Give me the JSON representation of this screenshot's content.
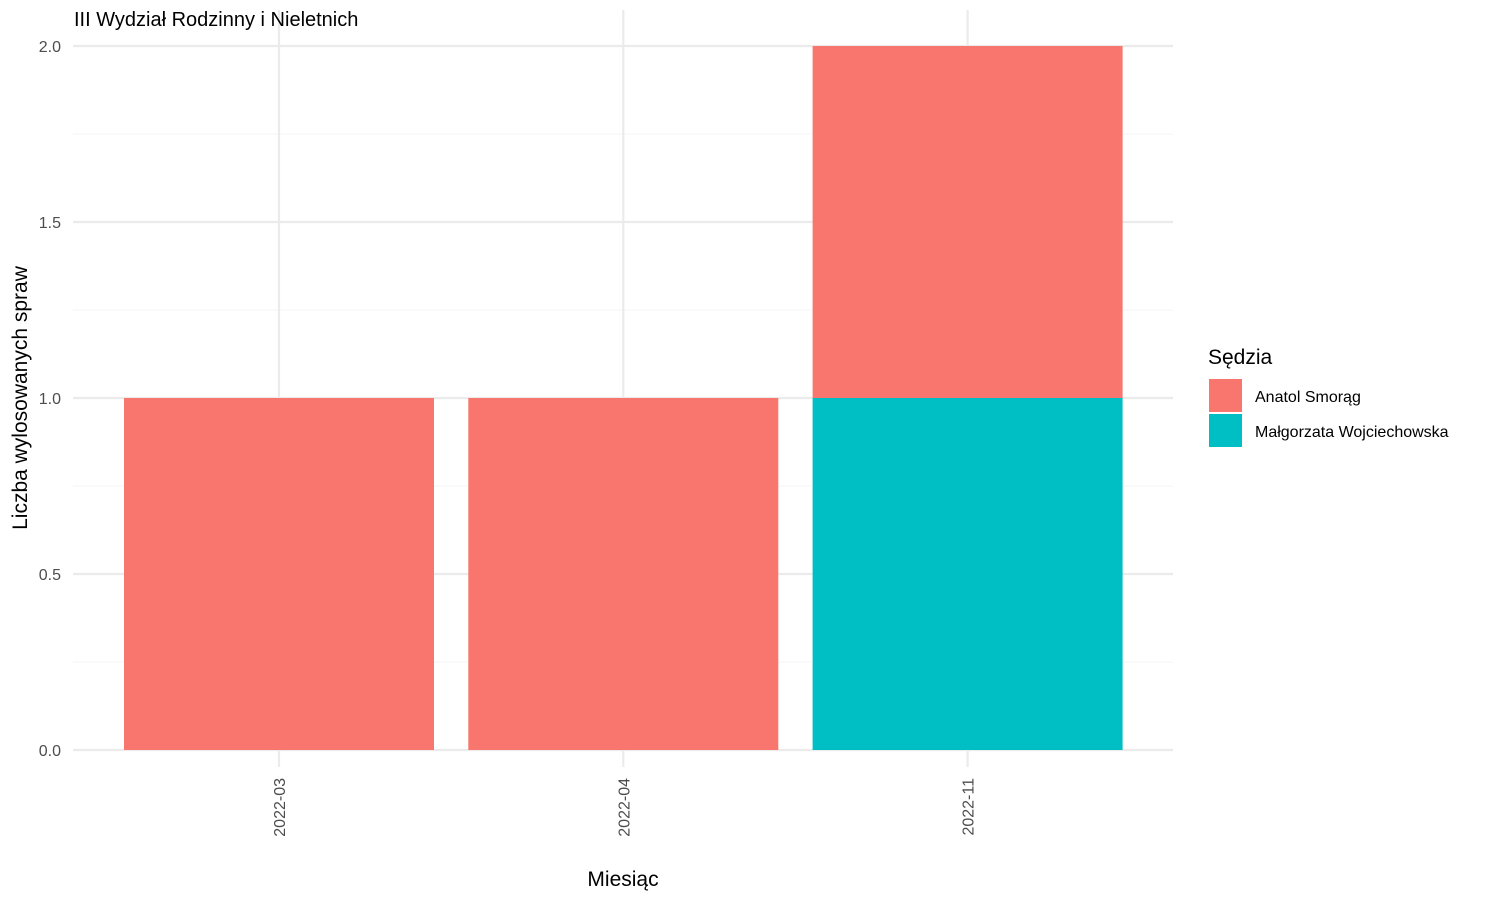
{
  "chart_data": {
    "type": "bar",
    "stacked": true,
    "title": "III Wydział Rodzinny i Nieletnich",
    "xlabel": "Miesiąc",
    "ylabel": "Liczba wylosowanych spraw",
    "categories": [
      "2022-03",
      "2022-04",
      "2022-11"
    ],
    "ylim": [
      0,
      2
    ],
    "yticks": [
      0,
      0.5,
      1,
      1.5,
      2
    ],
    "ytick_labels": [
      "0.0",
      "0.5",
      "1.0",
      "1.5",
      "2.0"
    ],
    "grid": true,
    "legend": {
      "title": "Sędzia",
      "placement": "right"
    },
    "series": [
      {
        "name": "Anatol Smorąg",
        "color": "#F8766D",
        "values": [
          1,
          1,
          1
        ]
      },
      {
        "name": "Małgorzata Wojciechowska",
        "color": "#00BFC4",
        "values": [
          0,
          0,
          1
        ]
      }
    ],
    "stack_order": [
      "Małgorzata Wojciechowska",
      "Anatol Smorąg"
    ]
  }
}
